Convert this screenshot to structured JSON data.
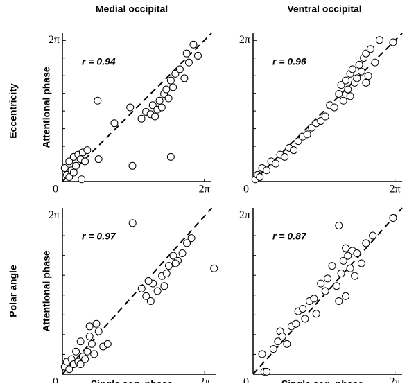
{
  "column_titles": [
    "Medial occipital",
    "Ventral occipital"
  ],
  "row_titles": [
    "Eccentricity",
    "Polar angle"
  ],
  "chart_data": [
    {
      "type": "scatter",
      "ylabel": "Attentional phase",
      "annotation": "r = 0.94",
      "color": "#ffffff",
      "diagonal": true,
      "xlim": [
        0,
        6.6
      ],
      "ylim": [
        0,
        6.6
      ],
      "xticks": [
        0,
        {
          "value": 6.283,
          "label": "2π"
        }
      ],
      "yticks": [
        {
          "value": 6.283,
          "label": "2π"
        }
      ],
      "yminor": [
        0.785,
        1.571,
        2.356,
        3.142,
        3.927,
        4.712,
        5.498
      ],
      "x": [
        0.1,
        0.2,
        0.3,
        0.4,
        0.5,
        0.6,
        0.7,
        0.8,
        0.9,
        1.0,
        1.1,
        0.3,
        0.5,
        0.85,
        1.6,
        1.56,
        2.3,
        3.0,
        3.1,
        4.8,
        3.5,
        3.7,
        3.9,
        4.0,
        4.2,
        4.3,
        4.4,
        4.5,
        4.6,
        4.7,
        4.8,
        4.9,
        5.0,
        5.2,
        5.4,
        5.6,
        5.8,
        6.0,
        5.5,
        4.1
      ],
      "y": [
        0.6,
        0.3,
        0.9,
        0.5,
        1.1,
        0.7,
        1.2,
        1.0,
        1.3,
        0.9,
        1.4,
        0.2,
        0.4,
        0.1,
        1.0,
        3.6,
        2.6,
        3.3,
        0.7,
        1.1,
        2.8,
        3.1,
        3.0,
        3.4,
        3.2,
        3.6,
        3.3,
        3.9,
        4.1,
        3.7,
        4.5,
        4.2,
        4.8,
        5.0,
        4.6,
        5.3,
        6.1,
        5.6,
        5.7,
        2.9
      ]
    },
    {
      "type": "scatter",
      "annotation": "r = 0.96",
      "color": "#ffffff",
      "diagonal": true,
      "xlim": [
        0,
        6.6
      ],
      "ylim": [
        0,
        6.6
      ],
      "xticks": [
        0,
        {
          "value": 6.283,
          "label": "2π"
        }
      ],
      "yticks": [
        {
          "value": 6.283,
          "label": "2π"
        }
      ],
      "yminor": [
        0.785,
        1.571,
        2.356,
        3.142,
        3.927,
        4.712,
        5.498
      ],
      "x": [
        0.1,
        0.2,
        0.3,
        0.4,
        0.6,
        0.8,
        1.0,
        1.2,
        1.4,
        1.6,
        1.8,
        2.0,
        2.2,
        2.4,
        2.6,
        2.8,
        3.0,
        3.2,
        3.4,
        3.6,
        3.8,
        3.9,
        4.0,
        4.1,
        4.2,
        4.3,
        4.4,
        4.5,
        4.6,
        4.7,
        4.8,
        4.9,
        5.0,
        5.1,
        5.2,
        5.4,
        5.6,
        6.2,
        4.3,
        5.0
      ],
      "y": [
        0.1,
        0.3,
        0.2,
        0.6,
        0.5,
        0.9,
        0.8,
        1.2,
        1.1,
        1.5,
        1.4,
        1.8,
        2.0,
        2.1,
        2.4,
        2.6,
        2.7,
        2.9,
        3.4,
        3.3,
        3.9,
        4.3,
        3.6,
        4.5,
        4.1,
        4.8,
        5.0,
        4.4,
        4.6,
        5.2,
        4.9,
        5.5,
        5.7,
        4.7,
        5.9,
        5.3,
        6.3,
        6.2,
        3.8,
        4.4
      ]
    },
    {
      "type": "scatter",
      "ylabel": "Attentional phase",
      "xlabel": "Single seg. phase",
      "annotation": "r = 0.97",
      "color": "#ffffff",
      "diagonal": true,
      "xlim": [
        0,
        6.8
      ],
      "ylim": [
        0,
        6.6
      ],
      "xticks": [
        0,
        {
          "value": 6.283,
          "label": "2π"
        }
      ],
      "yticks": [
        {
          "value": 6.283,
          "label": "2π"
        }
      ],
      "yminor": [
        0.785,
        1.571,
        2.356,
        3.142,
        3.927,
        4.712,
        5.498
      ],
      "x": [
        0.1,
        0.2,
        0.3,
        0.4,
        0.5,
        0.6,
        0.7,
        0.8,
        0.9,
        1.0,
        1.1,
        1.2,
        1.3,
        1.4,
        1.5,
        1.6,
        1.8,
        2.0,
        1.2,
        0.8,
        3.1,
        6.7,
        3.5,
        3.7,
        3.9,
        4.0,
        4.2,
        4.4,
        4.5,
        4.7,
        4.9,
        5.1,
        5.3,
        5.5,
        5.7,
        3.8,
        4.6,
        5.0
      ],
      "y": [
        0.3,
        0.5,
        0.2,
        0.6,
        0.4,
        0.9,
        0.5,
        1.3,
        0.7,
        0.6,
        0.9,
        1.5,
        1.2,
        0.8,
        2.0,
        1.7,
        1.1,
        1.2,
        1.9,
        0.4,
        6.0,
        4.2,
        3.4,
        3.1,
        2.9,
        3.6,
        3.3,
        3.9,
        3.5,
        4.3,
        4.7,
        4.5,
        4.8,
        5.2,
        5.4,
        3.7,
        4.0,
        4.4
      ]
    },
    {
      "type": "scatter",
      "xlabel": "Single seg. phase",
      "annotation": "r = 0.87",
      "color": "#ffffff",
      "diagonal": true,
      "xlim": [
        0,
        6.6
      ],
      "ylim": [
        0,
        6.6
      ],
      "xticks": [
        0,
        {
          "value": 6.283,
          "label": "2π"
        }
      ],
      "yticks": [
        {
          "value": 6.283,
          "label": "2π"
        }
      ],
      "yminor": [
        0.785,
        1.571,
        2.356,
        3.142,
        3.927,
        4.712,
        5.498
      ],
      "x": [
        0.5,
        0.6,
        0.4,
        0.9,
        1.1,
        1.2,
        1.3,
        1.5,
        1.7,
        1.9,
        2.0,
        2.2,
        2.3,
        2.5,
        2.7,
        2.8,
        3.0,
        3.2,
        3.3,
        3.5,
        3.7,
        3.8,
        3.9,
        4.0,
        4.1,
        4.2,
        4.3,
        4.4,
        4.5,
        4.6,
        4.8,
        5.0,
        5.3,
        6.2,
        3.8,
        4.1
      ],
      "y": [
        0.1,
        0.1,
        0.8,
        1.0,
        1.3,
        1.7,
        1.5,
        1.2,
        1.9,
        2.0,
        2.5,
        2.6,
        2.2,
        2.9,
        3.0,
        2.4,
        3.6,
        3.3,
        3.8,
        4.3,
        3.5,
        5.9,
        4.0,
        4.5,
        3.1,
        4.7,
        4.2,
        4.9,
        3.9,
        4.8,
        4.4,
        5.2,
        5.5,
        6.2,
        2.9,
        5.0
      ]
    }
  ]
}
